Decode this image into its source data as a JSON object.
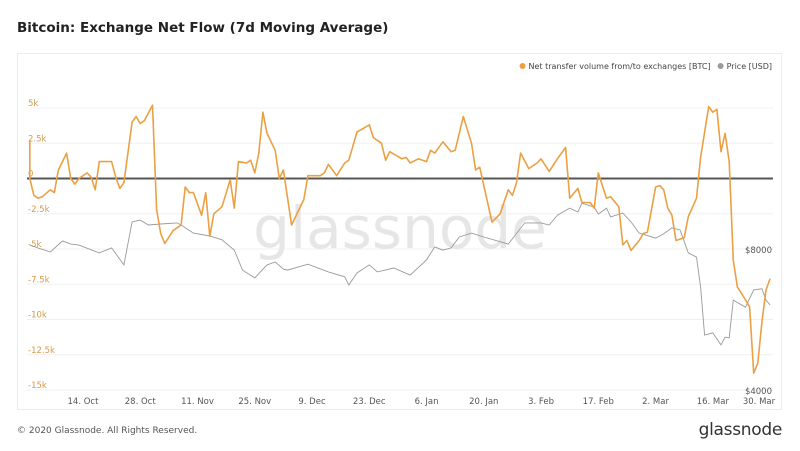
{
  "title": "Bitcoin: Exchange Net Flow (7d Moving Average)",
  "footer": "© 2020 Glassnode. All Rights Reserved.",
  "logo_text": "glassnode",
  "chart_data": {
    "type": "line",
    "title": "Bitcoin: Exchange Net Flow (7d Moving Average)",
    "legend_position": "top-right",
    "grid": true,
    "watermark": "glassnode",
    "x_range": [
      "2019-10-01",
      "2020-03-30"
    ],
    "x_ticks": [
      {
        "date": "2019-10-14",
        "label": "14. Oct"
      },
      {
        "date": "2019-10-28",
        "label": "28. Oct"
      },
      {
        "date": "2019-11-11",
        "label": "11. Nov"
      },
      {
        "date": "2019-11-25",
        "label": "25. Nov"
      },
      {
        "date": "2019-12-09",
        "label": "9. Dec"
      },
      {
        "date": "2019-12-23",
        "label": "23. Dec"
      },
      {
        "date": "2020-01-06",
        "label": "6. Jan"
      },
      {
        "date": "2020-01-20",
        "label": "20. Jan"
      },
      {
        "date": "2020-02-03",
        "label": "3. Feb"
      },
      {
        "date": "2020-02-17",
        "label": "17. Feb"
      },
      {
        "date": "2020-03-02",
        "label": "2. Mar"
      },
      {
        "date": "2020-03-16",
        "label": "16. Mar"
      },
      {
        "date": "2020-03-30",
        "label": "30. Mar"
      }
    ],
    "y_left": {
      "range": [
        -15000,
        5000
      ],
      "ticks": [
        {
          "v": 5000,
          "label": "5k"
        },
        {
          "v": 2500,
          "label": "2.5k"
        },
        {
          "v": 0,
          "label": "0"
        },
        {
          "v": -2500,
          "label": "-2.5k"
        },
        {
          "v": -5000,
          "label": "-5k"
        },
        {
          "v": -7500,
          "label": "-7.5k"
        },
        {
          "v": -10000,
          "label": "-10k"
        },
        {
          "v": -12500,
          "label": "-12.5k"
        },
        {
          "v": -15000,
          "label": "-15k"
        }
      ]
    },
    "y_right": {
      "range": [
        4000,
        8963
      ],
      "ticks": [
        {
          "v": 8000,
          "label": "$8000"
        },
        {
          "v": 4000,
          "label": "$4000"
        }
      ]
    },
    "zero_line": true,
    "series": [
      {
        "name": "Net transfer volume from/to exchanges [BTC]",
        "color": "#eba043",
        "axis": "left",
        "points": [
          [
            "2019-10-01",
            2700
          ],
          [
            "2019-10-01",
            0
          ],
          [
            "2019-10-02",
            -1200
          ],
          [
            "2019-10-03",
            -1400
          ],
          [
            "2019-10-04",
            -1300
          ],
          [
            "2019-10-06",
            -800
          ],
          [
            "2019-10-07",
            -1000
          ],
          [
            "2019-10-08",
            600
          ],
          [
            "2019-10-10",
            1800
          ],
          [
            "2019-10-11",
            0
          ],
          [
            "2019-10-12",
            -400
          ],
          [
            "2019-10-13",
            0
          ],
          [
            "2019-10-15",
            400
          ],
          [
            "2019-10-16",
            100
          ],
          [
            "2019-10-17",
            -800
          ],
          [
            "2019-10-18",
            1200
          ],
          [
            "2019-10-21",
            1200
          ],
          [
            "2019-10-22",
            100
          ],
          [
            "2019-10-23",
            -700
          ],
          [
            "2019-10-24",
            -300
          ],
          [
            "2019-10-26",
            4000
          ],
          [
            "2019-10-27",
            4400
          ],
          [
            "2019-10-28",
            3900
          ],
          [
            "2019-10-29",
            4100
          ],
          [
            "2019-10-31",
            5200
          ],
          [
            "2019-11-01",
            -2200
          ],
          [
            "2019-11-02",
            -3900
          ],
          [
            "2019-11-03",
            -4600
          ],
          [
            "2019-11-05",
            -3700
          ],
          [
            "2019-11-07",
            -3300
          ],
          [
            "2019-11-08",
            -600
          ],
          [
            "2019-11-09",
            -1000
          ],
          [
            "2019-11-10",
            -1000
          ],
          [
            "2019-11-12",
            -2600
          ],
          [
            "2019-11-13",
            -1000
          ],
          [
            "2019-11-14",
            -4100
          ],
          [
            "2019-11-15",
            -2500
          ],
          [
            "2019-11-17",
            -2000
          ],
          [
            "2019-11-19",
            -100
          ],
          [
            "2019-11-20",
            -2100
          ],
          [
            "2019-11-21",
            1200
          ],
          [
            "2019-11-23",
            1100
          ],
          [
            "2019-11-24",
            1300
          ],
          [
            "2019-11-25",
            400
          ],
          [
            "2019-11-26",
            1800
          ],
          [
            "2019-11-27",
            4700
          ],
          [
            "2019-11-28",
            3200
          ],
          [
            "2019-11-30",
            2000
          ],
          [
            "2019-12-01",
            0
          ],
          [
            "2019-12-02",
            600
          ],
          [
            "2019-12-04",
            -3300
          ],
          [
            "2019-12-07",
            -1500
          ],
          [
            "2019-12-08",
            200
          ],
          [
            "2019-12-11",
            200
          ],
          [
            "2019-12-12",
            400
          ],
          [
            "2019-12-13",
            1000
          ],
          [
            "2019-12-15",
            200
          ],
          [
            "2019-12-17",
            1100
          ],
          [
            "2019-12-18",
            1300
          ],
          [
            "2019-12-20",
            3300
          ],
          [
            "2019-12-23",
            3800
          ],
          [
            "2019-12-24",
            2900
          ],
          [
            "2019-12-26",
            2500
          ],
          [
            "2019-12-27",
            1300
          ],
          [
            "2019-12-28",
            1900
          ],
          [
            "2019-12-31",
            1400
          ],
          [
            "2020-01-01",
            1500
          ],
          [
            "2020-01-02",
            1100
          ],
          [
            "2020-01-04",
            1400
          ],
          [
            "2020-01-06",
            1200
          ],
          [
            "2020-01-07",
            2000
          ],
          [
            "2020-01-08",
            1800
          ],
          [
            "2020-01-10",
            2600
          ],
          [
            "2020-01-12",
            1900
          ],
          [
            "2020-01-13",
            2000
          ],
          [
            "2020-01-15",
            4400
          ],
          [
            "2020-01-17",
            2500
          ],
          [
            "2020-01-18",
            600
          ],
          [
            "2020-01-19",
            800
          ],
          [
            "2020-01-20",
            -500
          ],
          [
            "2020-01-22",
            -3100
          ],
          [
            "2020-01-24",
            -2500
          ],
          [
            "2020-01-26",
            -800
          ],
          [
            "2020-01-27",
            -1200
          ],
          [
            "2020-01-28",
            -300
          ],
          [
            "2020-01-29",
            1800
          ],
          [
            "2020-01-31",
            700
          ],
          [
            "2020-02-02",
            1100
          ],
          [
            "2020-02-03",
            1400
          ],
          [
            "2020-02-05",
            500
          ],
          [
            "2020-02-07",
            1400
          ],
          [
            "2020-02-09",
            2200
          ],
          [
            "2020-02-10",
            -1400
          ],
          [
            "2020-02-12",
            -700
          ],
          [
            "2020-02-13",
            -1700
          ],
          [
            "2020-02-15",
            -1700
          ],
          [
            "2020-02-16",
            -2100
          ],
          [
            "2020-02-17",
            400
          ],
          [
            "2020-02-19",
            -1400
          ],
          [
            "2020-02-20",
            -1300
          ],
          [
            "2020-02-22",
            -2000
          ],
          [
            "2020-02-23",
            -4700
          ],
          [
            "2020-02-24",
            -4400
          ],
          [
            "2020-02-25",
            -5100
          ],
          [
            "2020-02-27",
            -4400
          ],
          [
            "2020-02-28",
            -3900
          ],
          [
            "2020-02-29",
            -3800
          ],
          [
            "2020-03-02",
            -600
          ],
          [
            "2020-03-03",
            -500
          ],
          [
            "2020-03-04",
            -800
          ],
          [
            "2020-03-05",
            -2100
          ],
          [
            "2020-03-06",
            -2600
          ],
          [
            "2020-03-07",
            -4400
          ],
          [
            "2020-03-09",
            -4200
          ],
          [
            "2020-03-10",
            -2700
          ],
          [
            "2020-03-12",
            -1400
          ],
          [
            "2020-03-13",
            1500
          ],
          [
            "2020-03-15",
            5100
          ],
          [
            "2020-03-16",
            4700
          ],
          [
            "2020-03-17",
            4900
          ],
          [
            "2020-03-18",
            1900
          ],
          [
            "2020-03-19",
            3200
          ],
          [
            "2020-03-20",
            1200
          ],
          [
            "2020-03-21",
            -5800
          ],
          [
            "2020-03-22",
            -7700
          ],
          [
            "2020-03-24",
            -8600
          ],
          [
            "2020-03-25",
            -9100
          ],
          [
            "2020-03-26",
            -13800
          ],
          [
            "2020-03-27",
            -13100
          ],
          [
            "2020-03-28",
            -10200
          ],
          [
            "2020-03-29",
            -7900
          ],
          [
            "2020-03-30",
            -7100
          ]
        ]
      },
      {
        "name": "Price [USD]",
        "color": "#9a9a9a",
        "axis": "right",
        "points": [
          [
            "2019-10-01",
            8110
          ],
          [
            "2019-10-03",
            8030
          ],
          [
            "2019-10-06",
            7915
          ],
          [
            "2019-10-09",
            8230
          ],
          [
            "2019-10-11",
            8140
          ],
          [
            "2019-10-13",
            8110
          ],
          [
            "2019-10-18",
            7890
          ],
          [
            "2019-10-21",
            8030
          ],
          [
            "2019-10-24",
            7550
          ],
          [
            "2019-10-26",
            8770
          ],
          [
            "2019-10-28",
            8820
          ],
          [
            "2019-10-30",
            8680
          ],
          [
            "2019-11-02",
            8710
          ],
          [
            "2019-11-06",
            8740
          ],
          [
            "2019-11-07",
            8680
          ],
          [
            "2019-11-10",
            8450
          ],
          [
            "2019-11-14",
            8370
          ],
          [
            "2019-11-17",
            8260
          ],
          [
            "2019-11-20",
            7970
          ],
          [
            "2019-11-22",
            7400
          ],
          [
            "2019-11-25",
            7180
          ],
          [
            "2019-11-28",
            7550
          ],
          [
            "2019-11-30",
            7630
          ],
          [
            "2019-12-02",
            7430
          ],
          [
            "2019-12-03",
            7400
          ],
          [
            "2019-12-08",
            7570
          ],
          [
            "2019-12-13",
            7350
          ],
          [
            "2019-12-17",
            7210
          ],
          [
            "2019-12-18",
            6980
          ],
          [
            "2019-12-20",
            7320
          ],
          [
            "2019-12-23",
            7550
          ],
          [
            "2019-12-25",
            7350
          ],
          [
            "2019-12-29",
            7460
          ],
          [
            "2020-01-02",
            7260
          ],
          [
            "2020-01-06",
            7690
          ],
          [
            "2020-01-08",
            8060
          ],
          [
            "2020-01-10",
            7970
          ],
          [
            "2020-01-12",
            8030
          ],
          [
            "2020-01-14",
            8340
          ],
          [
            "2020-01-17",
            8450
          ],
          [
            "2020-01-20",
            8340
          ],
          [
            "2020-01-26",
            8140
          ],
          [
            "2020-01-30",
            8740
          ],
          [
            "2020-02-03",
            8740
          ],
          [
            "2020-02-05",
            8680
          ],
          [
            "2020-02-07",
            8960
          ],
          [
            "2020-02-10",
            9160
          ],
          [
            "2020-02-12",
            9050
          ],
          [
            "2020-02-13",
            9300
          ],
          [
            "2020-02-16",
            9190
          ],
          [
            "2020-02-17",
            8990
          ],
          [
            "2020-02-19",
            9160
          ],
          [
            "2020-02-20",
            8910
          ],
          [
            "2020-02-23",
            9020
          ],
          [
            "2020-02-25",
            8770
          ],
          [
            "2020-02-27",
            8450
          ],
          [
            "2020-03-02",
            8310
          ],
          [
            "2020-03-04",
            8430
          ],
          [
            "2020-03-06",
            8600
          ],
          [
            "2020-03-08",
            8540
          ],
          [
            "2020-03-10",
            7890
          ],
          [
            "2020-03-12",
            7770
          ],
          [
            "2020-03-13",
            6920
          ],
          [
            "2020-03-14",
            5560
          ],
          [
            "2020-03-16",
            5620
          ],
          [
            "2020-03-18",
            5280
          ],
          [
            "2020-03-19",
            5500
          ],
          [
            "2020-03-20",
            5480
          ],
          [
            "2020-03-21",
            6550
          ],
          [
            "2020-03-24",
            6350
          ],
          [
            "2020-03-26",
            6840
          ],
          [
            "2020-03-28",
            6870
          ],
          [
            "2020-03-29",
            6550
          ],
          [
            "2020-03-30",
            6410
          ]
        ]
      }
    ]
  }
}
